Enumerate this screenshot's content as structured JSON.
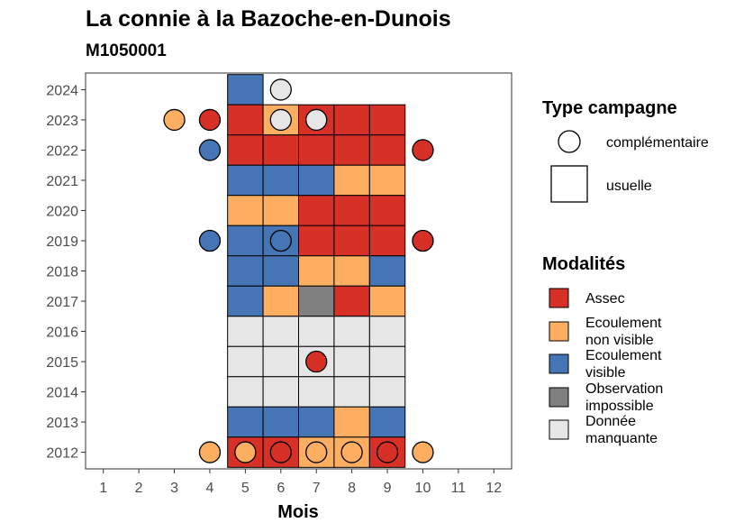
{
  "title": "La connie à la Bazoche-en-Dunois",
  "subtitle": "M1050001",
  "chart_data": {
    "type": "heatmap",
    "xlabel": "Mois",
    "ylabel": "",
    "x_ticks": [
      1,
      2,
      3,
      4,
      5,
      6,
      7,
      8,
      9,
      10,
      11,
      12
    ],
    "y_ticks": [
      2012,
      2013,
      2014,
      2015,
      2016,
      2017,
      2018,
      2019,
      2020,
      2021,
      2022,
      2023,
      2024
    ],
    "xlim": [
      0.5,
      12.5
    ],
    "ylim": [
      2011.45,
      2024.55
    ],
    "grid": false,
    "colors": {
      "Assec": "#d73027",
      "Ecoulement non visible": "#fdae61",
      "Ecoulement visible": "#4575b4",
      "Observation impossible": "#808080",
      "Donnée manquante": "#e6e6e6"
    },
    "usuelle": [
      {
        "year": 2024,
        "month": 5,
        "value": "Ecoulement visible"
      },
      {
        "year": 2023,
        "month": 5,
        "value": "Assec"
      },
      {
        "year": 2023,
        "month": 6,
        "value": "Ecoulement non visible"
      },
      {
        "year": 2023,
        "month": 7,
        "value": "Assec"
      },
      {
        "year": 2023,
        "month": 8,
        "value": "Assec"
      },
      {
        "year": 2023,
        "month": 9,
        "value": "Assec"
      },
      {
        "year": 2022,
        "month": 5,
        "value": "Assec"
      },
      {
        "year": 2022,
        "month": 6,
        "value": "Assec"
      },
      {
        "year": 2022,
        "month": 7,
        "value": "Assec"
      },
      {
        "year": 2022,
        "month": 8,
        "value": "Assec"
      },
      {
        "year": 2022,
        "month": 9,
        "value": "Assec"
      },
      {
        "year": 2021,
        "month": 5,
        "value": "Ecoulement visible"
      },
      {
        "year": 2021,
        "month": 6,
        "value": "Ecoulement visible"
      },
      {
        "year": 2021,
        "month": 7,
        "value": "Ecoulement visible"
      },
      {
        "year": 2021,
        "month": 8,
        "value": "Ecoulement non visible"
      },
      {
        "year": 2021,
        "month": 9,
        "value": "Ecoulement non visible"
      },
      {
        "year": 2020,
        "month": 5,
        "value": "Ecoulement non visible"
      },
      {
        "year": 2020,
        "month": 6,
        "value": "Ecoulement non visible"
      },
      {
        "year": 2020,
        "month": 7,
        "value": "Assec"
      },
      {
        "year": 2020,
        "month": 8,
        "value": "Assec"
      },
      {
        "year": 2020,
        "month": 9,
        "value": "Assec"
      },
      {
        "year": 2019,
        "month": 5,
        "value": "Ecoulement visible"
      },
      {
        "year": 2019,
        "month": 6,
        "value": "Ecoulement visible"
      },
      {
        "year": 2019,
        "month": 7,
        "value": "Assec"
      },
      {
        "year": 2019,
        "month": 8,
        "value": "Assec"
      },
      {
        "year": 2019,
        "month": 9,
        "value": "Assec"
      },
      {
        "year": 2018,
        "month": 5,
        "value": "Ecoulement visible"
      },
      {
        "year": 2018,
        "month": 6,
        "value": "Ecoulement visible"
      },
      {
        "year": 2018,
        "month": 7,
        "value": "Ecoulement non visible"
      },
      {
        "year": 2018,
        "month": 8,
        "value": "Ecoulement non visible"
      },
      {
        "year": 2018,
        "month": 9,
        "value": "Ecoulement visible"
      },
      {
        "year": 2017,
        "month": 5,
        "value": "Ecoulement visible"
      },
      {
        "year": 2017,
        "month": 6,
        "value": "Ecoulement non visible"
      },
      {
        "year": 2017,
        "month": 7,
        "value": "Observation impossible"
      },
      {
        "year": 2017,
        "month": 8,
        "value": "Assec"
      },
      {
        "year": 2017,
        "month": 9,
        "value": "Ecoulement non visible"
      },
      {
        "year": 2016,
        "month": 5,
        "value": "Donnée manquante"
      },
      {
        "year": 2016,
        "month": 6,
        "value": "Donnée manquante"
      },
      {
        "year": 2016,
        "month": 7,
        "value": "Donnée manquante"
      },
      {
        "year": 2016,
        "month": 8,
        "value": "Donnée manquante"
      },
      {
        "year": 2016,
        "month": 9,
        "value": "Donnée manquante"
      },
      {
        "year": 2015,
        "month": 5,
        "value": "Donnée manquante"
      },
      {
        "year": 2015,
        "month": 6,
        "value": "Donnée manquante"
      },
      {
        "year": 2015,
        "month": 7,
        "value": "Donnée manquante"
      },
      {
        "year": 2015,
        "month": 8,
        "value": "Donnée manquante"
      },
      {
        "year": 2015,
        "month": 9,
        "value": "Donnée manquante"
      },
      {
        "year": 2014,
        "month": 5,
        "value": "Donnée manquante"
      },
      {
        "year": 2014,
        "month": 6,
        "value": "Donnée manquante"
      },
      {
        "year": 2014,
        "month": 7,
        "value": "Donnée manquante"
      },
      {
        "year": 2014,
        "month": 8,
        "value": "Donnée manquante"
      },
      {
        "year": 2014,
        "month": 9,
        "value": "Donnée manquante"
      },
      {
        "year": 2013,
        "month": 5,
        "value": "Ecoulement visible"
      },
      {
        "year": 2013,
        "month": 6,
        "value": "Ecoulement visible"
      },
      {
        "year": 2013,
        "month": 7,
        "value": "Ecoulement visible"
      },
      {
        "year": 2013,
        "month": 8,
        "value": "Ecoulement non visible"
      },
      {
        "year": 2013,
        "month": 9,
        "value": "Ecoulement visible"
      },
      {
        "year": 2012,
        "month": 5,
        "value": "Assec"
      },
      {
        "year": 2012,
        "month": 6,
        "value": "Assec"
      },
      {
        "year": 2012,
        "month": 7,
        "value": "Ecoulement non visible"
      },
      {
        "year": 2012,
        "month": 8,
        "value": "Ecoulement non visible"
      },
      {
        "year": 2012,
        "month": 9,
        "value": "Assec"
      }
    ],
    "complementaire": [
      {
        "year": 2024,
        "month": 6,
        "value": "Donnée manquante"
      },
      {
        "year": 2023,
        "month": 3,
        "value": "Ecoulement non visible"
      },
      {
        "year": 2023,
        "month": 4,
        "value": "Assec"
      },
      {
        "year": 2023,
        "month": 6,
        "value": "Donnée manquante"
      },
      {
        "year": 2023,
        "month": 7,
        "value": "Donnée manquante"
      },
      {
        "year": 2022,
        "month": 4,
        "value": "Ecoulement visible"
      },
      {
        "year": 2022,
        "month": 10,
        "value": "Assec"
      },
      {
        "year": 2019,
        "month": 4,
        "value": "Ecoulement visible"
      },
      {
        "year": 2019,
        "month": 6,
        "value": "Ecoulement visible"
      },
      {
        "year": 2019,
        "month": 10,
        "value": "Assec"
      },
      {
        "year": 2015,
        "month": 7,
        "value": "Assec"
      },
      {
        "year": 2012,
        "month": 4,
        "value": "Ecoulement non visible"
      },
      {
        "year": 2012,
        "month": 5,
        "value": "Ecoulement non visible"
      },
      {
        "year": 2012,
        "month": 6,
        "value": "Assec"
      },
      {
        "year": 2012,
        "month": 7,
        "value": "Ecoulement non visible"
      },
      {
        "year": 2012,
        "month": 8,
        "value": "Ecoulement non visible"
      },
      {
        "year": 2012,
        "month": 9,
        "value": "Assec"
      },
      {
        "year": 2012,
        "month": 10,
        "value": "Ecoulement non visible"
      }
    ],
    "legend": {
      "placement": "right",
      "type_title": "Type campagne",
      "type_items": [
        {
          "label": "complémentaire",
          "shape": "circle"
        },
        {
          "label": "usuelle",
          "shape": "square"
        }
      ],
      "mod_title": "Modalités",
      "mod_items": [
        {
          "key": "Assec",
          "lines": [
            "Assec"
          ]
        },
        {
          "key": "Ecoulement non visible",
          "lines": [
            "Ecoulement",
            "non visible"
          ]
        },
        {
          "key": "Ecoulement visible",
          "lines": [
            "Ecoulement",
            "visible"
          ]
        },
        {
          "key": "Observation impossible",
          "lines": [
            "Observation",
            "impossible"
          ]
        },
        {
          "key": "Donnée manquante",
          "lines": [
            "Donnée",
            "manquante"
          ]
        }
      ]
    }
  }
}
